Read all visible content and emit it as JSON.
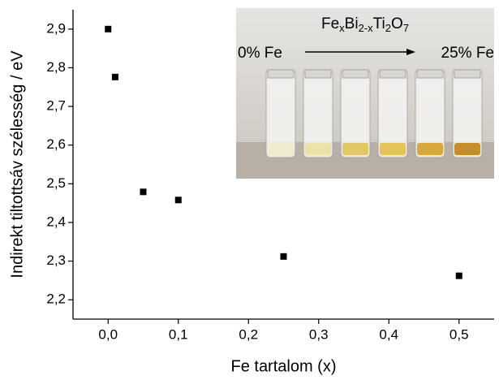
{
  "chart_data": {
    "type": "scatter",
    "x_label": "Fe tartalom (x)",
    "y_label": "Indirekt tiltottsáv szélesség / eV",
    "x": [
      0,
      0.01,
      0.05,
      0.1,
      0.25,
      0.5
    ],
    "values": [
      2.9,
      2.776,
      2.479,
      2.458,
      2.312,
      2.262
    ],
    "color": "#000000",
    "xlim": [
      -0.05,
      0.55
    ],
    "ylim": [
      2.15,
      2.95
    ],
    "xticks": [
      {
        "value": 0,
        "label": "0,0"
      },
      {
        "value": 0.1,
        "label": "0,1"
      },
      {
        "value": 0.2,
        "label": "0,2"
      },
      {
        "value": 0.3,
        "label": "0,3"
      },
      {
        "value": 0.4,
        "label": "0,4"
      },
      {
        "value": 0.5,
        "label": "0,5"
      }
    ],
    "yticks": [
      {
        "value": 2.2,
        "label": "2,2"
      },
      {
        "value": 2.3,
        "label": "2,3"
      },
      {
        "value": 2.4,
        "label": "2,4"
      },
      {
        "value": 2.5,
        "label": "2,5"
      },
      {
        "value": 2.6,
        "label": "2,6"
      },
      {
        "value": 2.7,
        "label": "2,7"
      },
      {
        "value": 2.8,
        "label": "2,8"
      },
      {
        "value": 2.9,
        "label": "2,9"
      }
    ],
    "inset": {
      "formula_parts": [
        "Fe",
        "x",
        "Bi",
        "2-x",
        "Ti",
        "2",
        "O",
        "7"
      ],
      "start_label": "0% Fe",
      "end_label": "25% Fe"
    }
  }
}
